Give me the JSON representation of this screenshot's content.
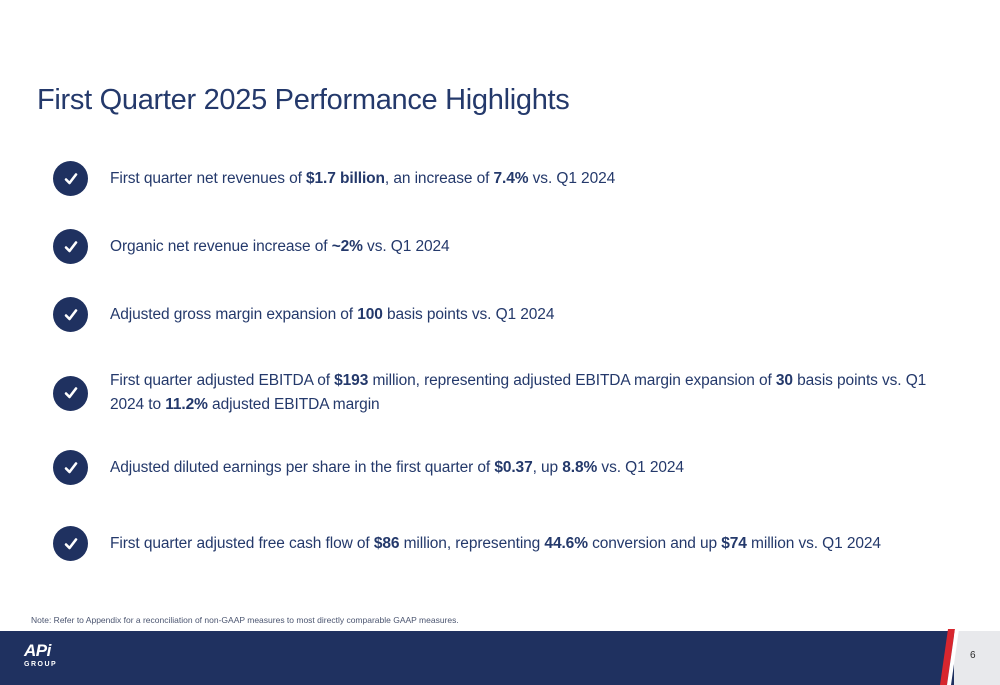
{
  "title": "First Quarter 2025 Performance Highlights",
  "bullets": [
    {
      "segments": [
        {
          "text": "First quarter net revenues of ",
          "bold": false
        },
        {
          "text": "$1.7 billion",
          "bold": true
        },
        {
          "text": ", an increase of ",
          "bold": false
        },
        {
          "text": "7.4%",
          "bold": true
        },
        {
          "text": " vs. Q1 2024",
          "bold": false
        }
      ]
    },
    {
      "segments": [
        {
          "text": "Organic net revenue increase of ",
          "bold": false
        },
        {
          "text": "~2%",
          "bold": true
        },
        {
          "text": " vs. Q1 2024",
          "bold": false
        }
      ]
    },
    {
      "segments": [
        {
          "text": "Adjusted gross margin expansion of ",
          "bold": false
        },
        {
          "text": "100",
          "bold": true
        },
        {
          "text": " basis points vs. Q1 2024",
          "bold": false
        }
      ]
    },
    {
      "segments": [
        {
          "text": "First quarter adjusted EBITDA of ",
          "bold": false
        },
        {
          "text": "$193",
          "bold": true
        },
        {
          "text": " million, representing adjusted EBITDA margin expansion of ",
          "bold": false
        },
        {
          "text": "30",
          "bold": true
        },
        {
          "text": " basis points vs. Q1 2024 to ",
          "bold": false
        },
        {
          "text": "11.2%",
          "bold": true
        },
        {
          "text": " adjusted EBITDA margin",
          "bold": false
        }
      ]
    },
    {
      "segments": [
        {
          "text": "Adjusted diluted earnings per share in the first quarter of ",
          "bold": false
        },
        {
          "text": "$0.37",
          "bold": true
        },
        {
          "text": ", up ",
          "bold": false
        },
        {
          "text": "8.8%",
          "bold": true
        },
        {
          "text": " vs. Q1 2024",
          "bold": false
        }
      ]
    },
    {
      "segments": [
        {
          "text": "First quarter adjusted free cash flow of ",
          "bold": false
        },
        {
          "text": "$86",
          "bold": true
        },
        {
          "text": " million, representing ",
          "bold": false
        },
        {
          "text": "44.6%",
          "bold": true
        },
        {
          "text": " conversion and up ",
          "bold": false
        },
        {
          "text": "$74",
          "bold": true
        },
        {
          "text": " million vs. Q1 2024",
          "bold": false
        }
      ]
    }
  ],
  "note": "Note:  Refer to Appendix for a reconciliation of non-GAAP measures to most directly comparable GAAP measures.",
  "footer": {
    "logo_main": "APi",
    "logo_sub": "GROUP",
    "page_number": "6"
  },
  "colors": {
    "navy": "#1f3160",
    "accent_red": "#d7262e",
    "background": "#ffffff"
  },
  "icons": {
    "bullet": "checkmark-circle-icon"
  }
}
